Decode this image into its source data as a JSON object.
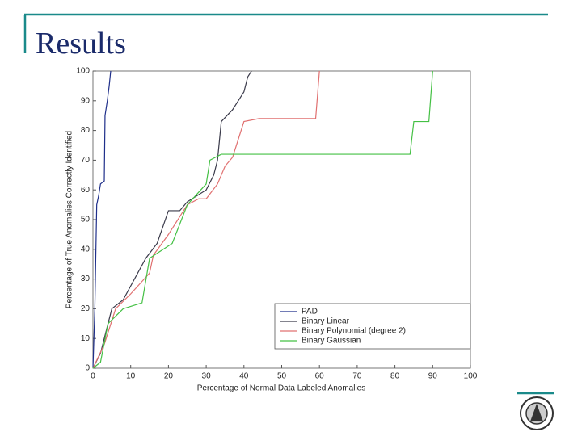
{
  "slide_title": "Results",
  "chart_data": {
    "type": "line",
    "xlabel": "Percentage of Normal Data Labeled Anomalies",
    "ylabel": "Percentage of True Anomalies Correctly Identified",
    "xlim": [
      0,
      100
    ],
    "xticks": [
      0,
      10,
      20,
      30,
      40,
      50,
      60,
      70,
      80,
      90,
      100
    ],
    "ylim": [
      0,
      100
    ],
    "yticks": [
      0,
      10,
      20,
      30,
      40,
      50,
      60,
      70,
      80,
      90,
      100
    ],
    "legend": "lower right",
    "series": [
      {
        "name": "PAD",
        "color": "#1f2f8a",
        "x": [
          0,
          0.5,
          1,
          1.5,
          2,
          3,
          3.2,
          3.8,
          4.3,
          4.7
        ],
        "values": [
          0,
          20,
          55,
          58,
          62,
          63,
          85,
          90,
          95,
          100
        ]
      },
      {
        "name": "Binary Linear",
        "color": "#3a3a4a",
        "x": [
          0,
          2,
          4,
          5,
          8,
          14,
          17,
          20,
          23,
          25,
          30,
          32,
          33,
          34,
          37,
          40,
          41,
          42
        ],
        "values": [
          0,
          5,
          15,
          20,
          23,
          37,
          42,
          53,
          53,
          56,
          60,
          65,
          70,
          83,
          87,
          93,
          98,
          100
        ]
      },
      {
        "name": "Binary Polynomial (degree 2)",
        "color": "#e07070",
        "x": [
          0,
          3,
          6,
          10,
          15,
          16,
          20,
          25,
          28,
          30,
          33,
          35,
          37,
          40,
          44,
          59,
          60
        ],
        "values": [
          0,
          8,
          20,
          25,
          32,
          38,
          45,
          55,
          57,
          57,
          62,
          68,
          71,
          83,
          84,
          84,
          100
        ]
      },
      {
        "name": "Binary Gaussian",
        "color": "#44c044",
        "x": [
          0,
          2,
          4,
          8,
          13,
          15,
          21,
          25,
          30,
          31,
          34,
          84,
          85,
          89,
          90
        ],
        "values": [
          0,
          2,
          15,
          20,
          22,
          37,
          42,
          55,
          62,
          70,
          72,
          72,
          83,
          83,
          100
        ]
      }
    ]
  }
}
